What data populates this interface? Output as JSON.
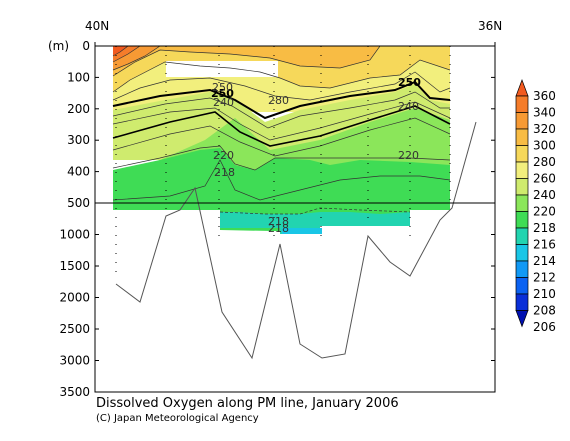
{
  "chart_data": {
    "type": "contour",
    "title": "Dissolved Oxygen along PM line, January 2006",
    "credit": "(C) Japan Meteorological Agency",
    "ylabel": "(m)",
    "x_end_labels": [
      "40N",
      "36N"
    ],
    "y_ticks": [
      0,
      100,
      200,
      300,
      400,
      500,
      1000,
      1500,
      2000,
      2500,
      3000,
      3500
    ],
    "y_axis_break_depth": 500,
    "ylim": [
      0,
      3500
    ],
    "colorbar": {
      "levels": [
        360,
        340,
        320,
        300,
        280,
        260,
        240,
        220,
        218,
        216,
        214,
        212,
        210,
        208,
        206
      ],
      "colors": [
        "#f25a1f",
        "#f57c2a",
        "#f79a34",
        "#f8bc44",
        "#f6d85a",
        "#f2ef7d",
        "#cfeb6e",
        "#8be65a",
        "#3fdc55",
        "#22d4b0",
        "#19c6e6",
        "#1199f5",
        "#0b62f2",
        "#0a2fd8",
        "#0010b0"
      ]
    },
    "contour_labels": [
      "250",
      "250",
      "250",
      "280",
      "240",
      "240",
      "220",
      "220",
      "218",
      "218",
      "218"
    ]
  },
  "colors": {
    "c360": "#f25a1f",
    "c340": "#f57c2a",
    "c320": "#f79a34",
    "c300": "#f8bc44",
    "c280": "#f6d85a",
    "c260": "#f2ef7d",
    "c240": "#cfeb6e",
    "c220": "#8be65a",
    "c218": "#3fdc55",
    "c216": "#22d4b0"
  }
}
